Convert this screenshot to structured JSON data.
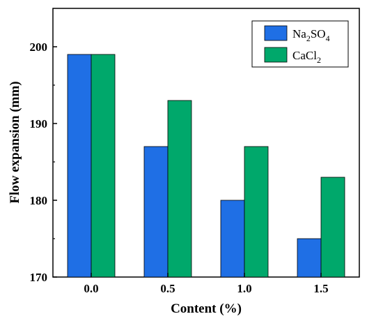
{
  "chart_data": {
    "type": "bar",
    "categories": [
      "0.0",
      "0.5",
      "1.0",
      "1.5"
    ],
    "series": [
      {
        "name_prefix": "Na",
        "name_sub1": "2",
        "name_mid": "SO",
        "name_sub2": "4",
        "name": "Na2SO4",
        "color": "#1f6fe5",
        "values": [
          199,
          187,
          180,
          175
        ]
      },
      {
        "name_prefix": "CaCl",
        "name_sub1": "2",
        "name": "CaCl2",
        "color": "#00a86b",
        "values": [
          199,
          193,
          187,
          183
        ]
      }
    ],
    "xlabel": "Content (%)",
    "ylabel": "Flow expansion (mm)",
    "ylim": [
      170,
      205
    ],
    "yticks": [
      "170",
      "180",
      "190",
      "200"
    ],
    "grid": false,
    "legend_position": "top-right"
  }
}
